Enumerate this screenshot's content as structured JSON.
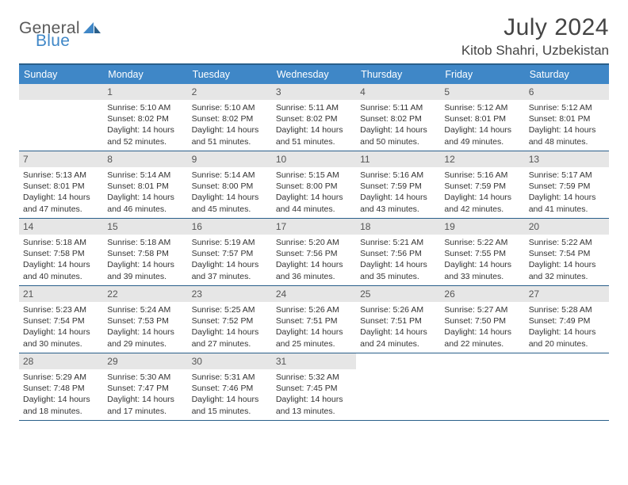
{
  "brand": {
    "part1": "General",
    "part2": "Blue"
  },
  "title": "July 2024",
  "location": "Kitob Shahri, Uzbekistan",
  "colors": {
    "header_bg": "#3f87c7",
    "rule": "#2a5f8a",
    "daynum_bg": "#e6e6e6",
    "text": "#333333",
    "title_text": "#444444",
    "white": "#ffffff"
  },
  "dow": [
    "Sunday",
    "Monday",
    "Tuesday",
    "Wednesday",
    "Thursday",
    "Friday",
    "Saturday"
  ],
  "weeks": [
    [
      null,
      {
        "n": "1",
        "sr": "5:10 AM",
        "ss": "8:02 PM",
        "dl": "14 hours and 52 minutes."
      },
      {
        "n": "2",
        "sr": "5:10 AM",
        "ss": "8:02 PM",
        "dl": "14 hours and 51 minutes."
      },
      {
        "n": "3",
        "sr": "5:11 AM",
        "ss": "8:02 PM",
        "dl": "14 hours and 51 minutes."
      },
      {
        "n": "4",
        "sr": "5:11 AM",
        "ss": "8:02 PM",
        "dl": "14 hours and 50 minutes."
      },
      {
        "n": "5",
        "sr": "5:12 AM",
        "ss": "8:01 PM",
        "dl": "14 hours and 49 minutes."
      },
      {
        "n": "6",
        "sr": "5:12 AM",
        "ss": "8:01 PM",
        "dl": "14 hours and 48 minutes."
      }
    ],
    [
      {
        "n": "7",
        "sr": "5:13 AM",
        "ss": "8:01 PM",
        "dl": "14 hours and 47 minutes."
      },
      {
        "n": "8",
        "sr": "5:14 AM",
        "ss": "8:01 PM",
        "dl": "14 hours and 46 minutes."
      },
      {
        "n": "9",
        "sr": "5:14 AM",
        "ss": "8:00 PM",
        "dl": "14 hours and 45 minutes."
      },
      {
        "n": "10",
        "sr": "5:15 AM",
        "ss": "8:00 PM",
        "dl": "14 hours and 44 minutes."
      },
      {
        "n": "11",
        "sr": "5:16 AM",
        "ss": "7:59 PM",
        "dl": "14 hours and 43 minutes."
      },
      {
        "n": "12",
        "sr": "5:16 AM",
        "ss": "7:59 PM",
        "dl": "14 hours and 42 minutes."
      },
      {
        "n": "13",
        "sr": "5:17 AM",
        "ss": "7:59 PM",
        "dl": "14 hours and 41 minutes."
      }
    ],
    [
      {
        "n": "14",
        "sr": "5:18 AM",
        "ss": "7:58 PM",
        "dl": "14 hours and 40 minutes."
      },
      {
        "n": "15",
        "sr": "5:18 AM",
        "ss": "7:58 PM",
        "dl": "14 hours and 39 minutes."
      },
      {
        "n": "16",
        "sr": "5:19 AM",
        "ss": "7:57 PM",
        "dl": "14 hours and 37 minutes."
      },
      {
        "n": "17",
        "sr": "5:20 AM",
        "ss": "7:56 PM",
        "dl": "14 hours and 36 minutes."
      },
      {
        "n": "18",
        "sr": "5:21 AM",
        "ss": "7:56 PM",
        "dl": "14 hours and 35 minutes."
      },
      {
        "n": "19",
        "sr": "5:22 AM",
        "ss": "7:55 PM",
        "dl": "14 hours and 33 minutes."
      },
      {
        "n": "20",
        "sr": "5:22 AM",
        "ss": "7:54 PM",
        "dl": "14 hours and 32 minutes."
      }
    ],
    [
      {
        "n": "21",
        "sr": "5:23 AM",
        "ss": "7:54 PM",
        "dl": "14 hours and 30 minutes."
      },
      {
        "n": "22",
        "sr": "5:24 AM",
        "ss": "7:53 PM",
        "dl": "14 hours and 29 minutes."
      },
      {
        "n": "23",
        "sr": "5:25 AM",
        "ss": "7:52 PM",
        "dl": "14 hours and 27 minutes."
      },
      {
        "n": "24",
        "sr": "5:26 AM",
        "ss": "7:51 PM",
        "dl": "14 hours and 25 minutes."
      },
      {
        "n": "25",
        "sr": "5:26 AM",
        "ss": "7:51 PM",
        "dl": "14 hours and 24 minutes."
      },
      {
        "n": "26",
        "sr": "5:27 AM",
        "ss": "7:50 PM",
        "dl": "14 hours and 22 minutes."
      },
      {
        "n": "27",
        "sr": "5:28 AM",
        "ss": "7:49 PM",
        "dl": "14 hours and 20 minutes."
      }
    ],
    [
      {
        "n": "28",
        "sr": "5:29 AM",
        "ss": "7:48 PM",
        "dl": "14 hours and 18 minutes."
      },
      {
        "n": "29",
        "sr": "5:30 AM",
        "ss": "7:47 PM",
        "dl": "14 hours and 17 minutes."
      },
      {
        "n": "30",
        "sr": "5:31 AM",
        "ss": "7:46 PM",
        "dl": "14 hours and 15 minutes."
      },
      {
        "n": "31",
        "sr": "5:32 AM",
        "ss": "7:45 PM",
        "dl": "14 hours and 13 minutes."
      },
      null,
      null,
      null
    ]
  ],
  "last_row_show_empty_bar": false
}
